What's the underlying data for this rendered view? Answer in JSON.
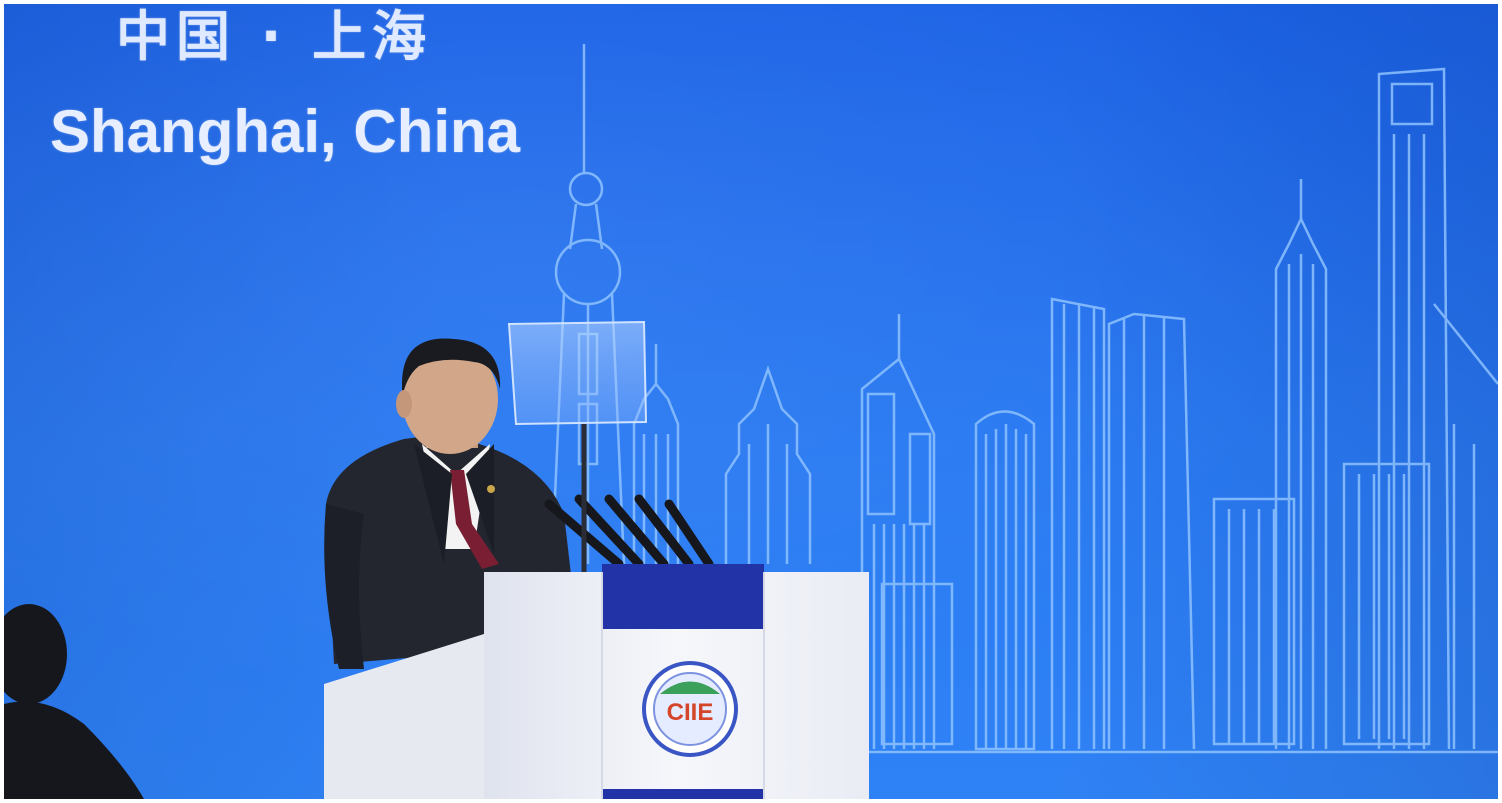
{
  "photo": {
    "caption_chinese": "中国 · 上海",
    "caption_english": "Shanghai, China",
    "podium_logo_text": "CIIE"
  },
  "colors": {
    "backdrop": "#2a7af2",
    "skyline_line": "#8ec2ff",
    "podium": "#f2f3f8",
    "podium_band": "#2233a8",
    "suit": "#23262f",
    "tie": "#7a1f33"
  }
}
